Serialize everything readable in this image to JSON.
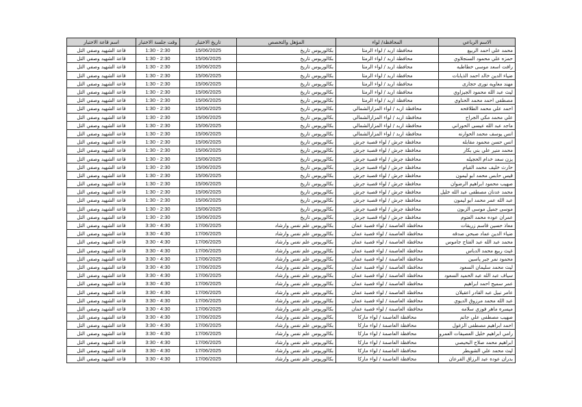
{
  "headers": {
    "name": "الاسم الرباعي",
    "governorate": "المحافظة/ لواء",
    "qualification": "المؤهل والتخصص",
    "date": "تاريخ الاختبار",
    "time": "وقت جلسة الاختبار",
    "hall": "اسم قاعة الاختبار"
  },
  "rows": [
    {
      "name": "محمد علي احمد الربيع",
      "governorate": "محافظة اربد /  لواء الرمثا",
      "qualification": "بكالوريوس تاريخ",
      "date": "15/06/2025",
      "time": "1:30 - 2:30",
      "hall": "قاعة الشهيد وصفي التل"
    },
    {
      "name": "حمزه علي محمود السنجلاوي",
      "governorate": "محافظة اربد /  لواء الرمثا",
      "qualification": "بكالوريوس تاريخ",
      "date": "15/06/2025",
      "time": "1:30 - 2:30",
      "hall": "قاعة الشهيد وصفي التل"
    },
    {
      "name": "رافت اسعد موسى خطاطبه",
      "governorate": "محافظة اربد /  لواء الرمثا",
      "qualification": "بكالوريوس تاريخ",
      "date": "15/06/2025",
      "time": "1:30 - 2:30",
      "hall": "قاعة الشهيد وصفي التل"
    },
    {
      "name": "ضياء الدين خالد احمد الذيابات",
      "governorate": "محافظة اربد /  لواء الرمثا",
      "qualification": "بكالوريوس تاريخ",
      "date": "15/06/2025",
      "time": "1:30 - 2:30",
      "hall": "قاعة الشهيد وصفي التل"
    },
    {
      "name": "مهند معاويه نورى حجازى",
      "governorate": "محافظة اربد /  لواء الرمثا",
      "qualification": "بكالوريوس تاريخ",
      "date": "15/06/2025",
      "time": "1:30 - 2:30",
      "hall": "قاعة الشهيد وصفي التل"
    },
    {
      "name": "ليث عبد الله محمود الجيزاوي",
      "governorate": "محافظة اربد /  لواء الرمثا",
      "qualification": "بكالوريوس تاريخ",
      "date": "15/06/2025",
      "time": "1:30 - 2:30",
      "hall": "قاعة الشهيد وصفي التل"
    },
    {
      "name": "مصطفى احمد محمد الحناوي",
      "governorate": "محافظة اربد /  لواء الرمثا",
      "qualification": "بكالوريوس تاريخ",
      "date": "15/06/2025",
      "time": "1:30 - 2:30",
      "hall": "قاعة الشهيد وصفي التل"
    },
    {
      "name": "احمد علي محمد الطلافحه",
      "governorate": "محافظة اربد / لواء المزارالشمالي",
      "qualification": "بكالوريوس تاريخ",
      "date": "15/06/2025",
      "time": "1:30 - 2:30",
      "hall": "قاعة الشهيد وصفي التل"
    },
    {
      "name": "علي محمد مكي الجراح",
      "governorate": "محافظة اربد / لواء المزارالشمالي",
      "qualification": "بكالوريوس تاريخ",
      "date": "15/06/2025",
      "time": "1:30 - 2:30",
      "hall": "قاعة الشهيد وصفي التل"
    },
    {
      "name": "ماجد عبد الله عيسى الحوراني",
      "governorate": "محافظة اربد / لواء المزارالشمالي",
      "qualification": "بكالوريوس تاريخ",
      "date": "15/06/2025",
      "time": "1:30 - 2:30",
      "hall": "قاعة الشهيد وصفي التل"
    },
    {
      "name": "انس يوسف محمد الحوارنه",
      "governorate": "محافظة اربد / لواء المزارالشمالي",
      "qualification": "بكالوريوس تاريخ",
      "date": "15/06/2025",
      "time": "1:30 - 2:30",
      "hall": "قاعة الشهيد وصفي التل"
    },
    {
      "name": "انس حسن محمود مقابله",
      "governorate": "محافظة جرش / لواء قصبة جرش",
      "qualification": "بكالوريوس تاريخ",
      "date": "15/06/2025",
      "time": "1:30 - 2:30",
      "hall": "قاعة الشهيد وصفي التل"
    },
    {
      "name": "محمد منير علي بني بكار",
      "governorate": "محافظة جرش / لواء قصبة جرش",
      "qualification": "بكالوريوس تاريخ",
      "date": "15/06/2025",
      "time": "1:30 - 2:30",
      "hall": "قاعة الشهيد وصفي التل"
    },
    {
      "name": "يزن سعد خدام الحجيله",
      "governorate": "محافظة جرش / لواء قصبة جرش",
      "qualification": "بكالوريوس تاريخ",
      "date": "15/06/2025",
      "time": "1:30 - 2:30",
      "hall": "قاعة الشهيد وصفي التل"
    },
    {
      "name": "حارث خليف محمد القيام",
      "governorate": "محافظة جرش / لواء قصبة جرش",
      "qualification": "بكالوريوس تاريخ",
      "date": "15/06/2025",
      "time": "1:30 - 2:30",
      "hall": "قاعة الشهيد وصفي التل"
    },
    {
      "name": "قيس حابس محمد ابو ليمون",
      "governorate": "محافظة جرش / لواء قصبة جرش",
      "qualification": "بكالوريوس تاريخ",
      "date": "15/06/2025",
      "time": "1:30 - 2:30",
      "hall": "قاعة الشهيد وصفي التل"
    },
    {
      "name": "صهيب محمود ابراهيم الرضوان",
      "governorate": "محافظة جرش / لواء قصبة جرش",
      "qualification": "بكالوريوس تاريخ",
      "date": "15/06/2025",
      "time": "1:30 - 2:30",
      "hall": "قاعة الشهيد وصفي التل"
    },
    {
      "name": "محمد عدنان مصطفى عبد الله خليل",
      "governorate": "محافظة جرش / لواء قصبة جرش",
      "qualification": "بكالوريوس تاريخ",
      "date": "15/06/2025",
      "time": "1:30 - 2:30",
      "hall": "قاعة الشهيد وصفي التل"
    },
    {
      "name": "عبد الله عمر محمد ابو ليمون",
      "governorate": "محافظة جرش / لواء قصبة جرش",
      "qualification": "بكالوريوس تاريخ",
      "date": "15/06/2025",
      "time": "1:30 - 2:30",
      "hall": "قاعة الشهيد وصفي التل"
    },
    {
      "name": "موسى جميل موسى الزبون",
      "governorate": "محافظة جرش / لواء قصبة جرش",
      "qualification": "بكالوريوس تاريخ",
      "date": "15/06/2025",
      "time": "1:30 - 2:30",
      "hall": "قاعة الشهيد وصفي التل"
    },
    {
      "name": "عمران عوده محمد العتوم",
      "governorate": "محافظة جرش / لواء قصبة جرش",
      "qualification": "بكالوريوس تاريخ",
      "date": "15/06/2025",
      "time": "1:30 - 2:30",
      "hall": "قاعة الشهيد وصفي التل"
    },
    {
      "name": "معاذ حسين قاسم زريقات",
      "governorate": "محافظة العاصمة / لواء قصبة عمان",
      "qualification": "بكالوريوس علم نفس وارشاد",
      "date": "17/06/2025",
      "time": "3:30 - 4:30",
      "hall": "قاعة الشهيد وصفي التل"
    },
    {
      "name": "ضياء الدين عماد صبحي صدقه",
      "governorate": "محافظة العاصمة / لواء قصبة عمان",
      "qualification": "بكالوريوس علم نفس وارشاد",
      "date": "17/06/2025",
      "time": "3:30 - 4:30",
      "hall": "قاعة الشهيد وصفي التل"
    },
    {
      "name": "محمد عبد الله عبد الفتاح جاموس",
      "governorate": "محافظة العاصمة / لواء قصبة عمان",
      "qualification": "بكالوريوس علم نفس وارشاد",
      "date": "17/06/2025",
      "time": "3:30 - 4:30",
      "hall": "قاعة الشهيد وصفي التل"
    },
    {
      "name": "غيث ربيع محمد الدباس",
      "governorate": "محافظة العاصمة / لواء قصبة عمان",
      "qualification": "بكالوريوس علم نفس وارشاد",
      "date": "17/06/2025",
      "time": "3:30 - 4:30",
      "hall": "قاعة الشهيد وصفي التل"
    },
    {
      "name": "محمود نمر جبر ياسين",
      "governorate": "محافظة العاصمة / لواء قصبة عمان",
      "qualification": "بكالوريوس علم نفس وارشاد",
      "date": "17/06/2025",
      "time": "3:30 - 4:30",
      "hall": "قاعة الشهيد وصفي التل"
    },
    {
      "name": "ليث محمد سليمان السعود",
      "governorate": "محافظة العاصمة / لواء قصبة عمان",
      "qualification": "بكالوريوس علم نفس وارشاد",
      "date": "17/06/2025",
      "time": "3:30 - 4:30",
      "hall": "قاعة الشهيد وصفي التل"
    },
    {
      "name": "سياف عبد الله عبد الحميد السعود",
      "governorate": "محافظة العاصمة / لواء قصبة عمان",
      "qualification": "بكالوريوس علم نفس وارشاد",
      "date": "17/06/2025",
      "time": "3:30 - 4:30",
      "hall": "قاعة الشهيد وصفي التل"
    },
    {
      "name": "عمر سميح احمد ابراهيم",
      "governorate": "محافظة العاصمة / لواء قصبة عمان",
      "qualification": "بكالوريوس علم نفس وارشاد",
      "date": "17/06/2025",
      "time": "3:30 - 4:30",
      "hall": "قاعة الشهيد وصفي التل"
    },
    {
      "name": "عامر نبيل عبد القادر اعقيلان",
      "governorate": "محافظة العاصمة / لواء قصبة عمان",
      "qualification": "بكالوريوس علم نفس وارشاد",
      "date": "17/06/2025",
      "time": "3:30 - 4:30",
      "hall": "قاعة الشهيد وصفي التل"
    },
    {
      "name": "عبد الله محمد مرزوق الديوي",
      "governorate": "محافظة العاصمة / لواء قصبة عمان",
      "qualification": "بكالوريوس علم نفس وارشاد",
      "date": "17/06/2025",
      "time": "3:30 - 4:30",
      "hall": "قاعة الشهيد وصفي التل"
    },
    {
      "name": "ميسره ماهر فوزي سلامه",
      "governorate": "محافظة العاصمة / لواء قصبة عمان",
      "qualification": "بكالوريوس علم نفس وارشاد",
      "date": "17/06/2025",
      "time": "3:30 - 4:30",
      "hall": "قاعة الشهيد وصفي التل"
    },
    {
      "name": "صهيب مصطفى علي جانم",
      "governorate": "محافظة العاصمة / لواء ماركا",
      "qualification": "بكالوريوس علم نفس وارشاد",
      "date": "17/06/2025",
      "time": "3:30 - 4:30",
      "hall": "قاعة الشهيد وصفي التل"
    },
    {
      "name": "احمد ابراهيم مصطفى الزغول",
      "governorate": "محافظة العاصمة / لواء ماركا",
      "qualification": "بكالوريوس علم نفس وارشاد",
      "date": "17/06/2025",
      "time": "3:30 - 4:30",
      "hall": "قاعة الشهيد وصفي التل"
    },
    {
      "name": "رامي ابراهيم خليل العصيفات العمرو",
      "governorate": "محافظة العاصمة / لواء ماركا",
      "qualification": "بكالوريوس علم نفس وارشاد",
      "date": "17/06/2025",
      "time": "3:30 - 4:30",
      "hall": "قاعة الشهيد وصفي التل"
    },
    {
      "name": "ابراهيم محمد صلاح البحيصي",
      "governorate": "محافظة العاصمة / لواء ماركا",
      "qualification": "بكالوريوس علم نفس وارشاد",
      "date": "17/06/2025",
      "time": "3:30 - 4:30",
      "hall": "قاعة الشهيد وصفي التل"
    },
    {
      "name": "ليث محمد علي الشويطر",
      "governorate": "محافظة العاصمة / لواء ماركا",
      "qualification": "بكالوريوس علم نفس وارشاد",
      "date": "17/06/2025",
      "time": "3:30 - 4:30",
      "hall": "قاعة الشهيد وصفي التل"
    },
    {
      "name": "بدران عوده عبد الرزاق القرعان",
      "governorate": "محافظة العاصمة / لواء ماركا",
      "qualification": "بكالوريوس علم نفس وارشاد",
      "date": "17/06/2025",
      "time": "3:30 - 4:30",
      "hall": "قاعة الشهيد وصفي التل"
    }
  ]
}
